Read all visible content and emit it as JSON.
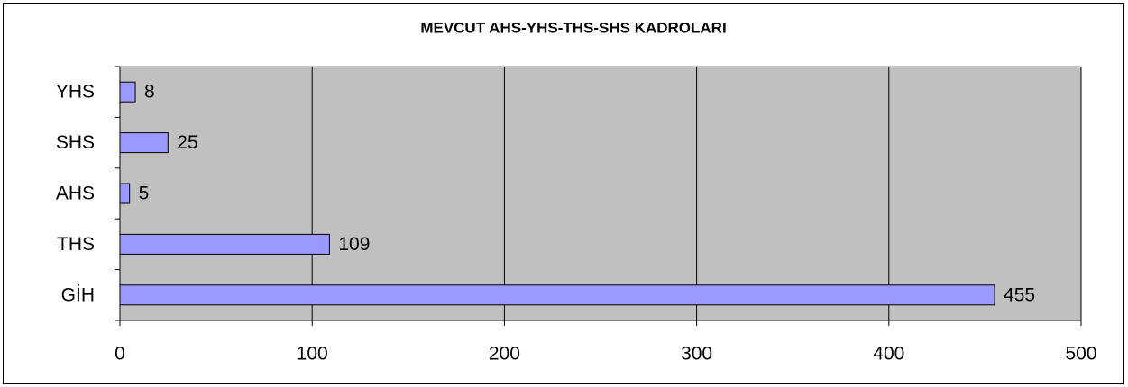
{
  "chart_data": {
    "type": "bar",
    "orientation": "horizontal",
    "title": "MEVCUT AHS-YHS-THS-SHS KADROLARI",
    "categories": [
      "YHS",
      "SHS",
      "AHS",
      "THS",
      "GİH"
    ],
    "values": [
      8,
      25,
      5,
      109,
      455
    ],
    "color": "#9999ff",
    "plot_background": "#c0c0c0",
    "xlim": [
      0,
      500
    ],
    "xticks": [
      0,
      100,
      200,
      300,
      400,
      500
    ],
    "grid": true
  }
}
